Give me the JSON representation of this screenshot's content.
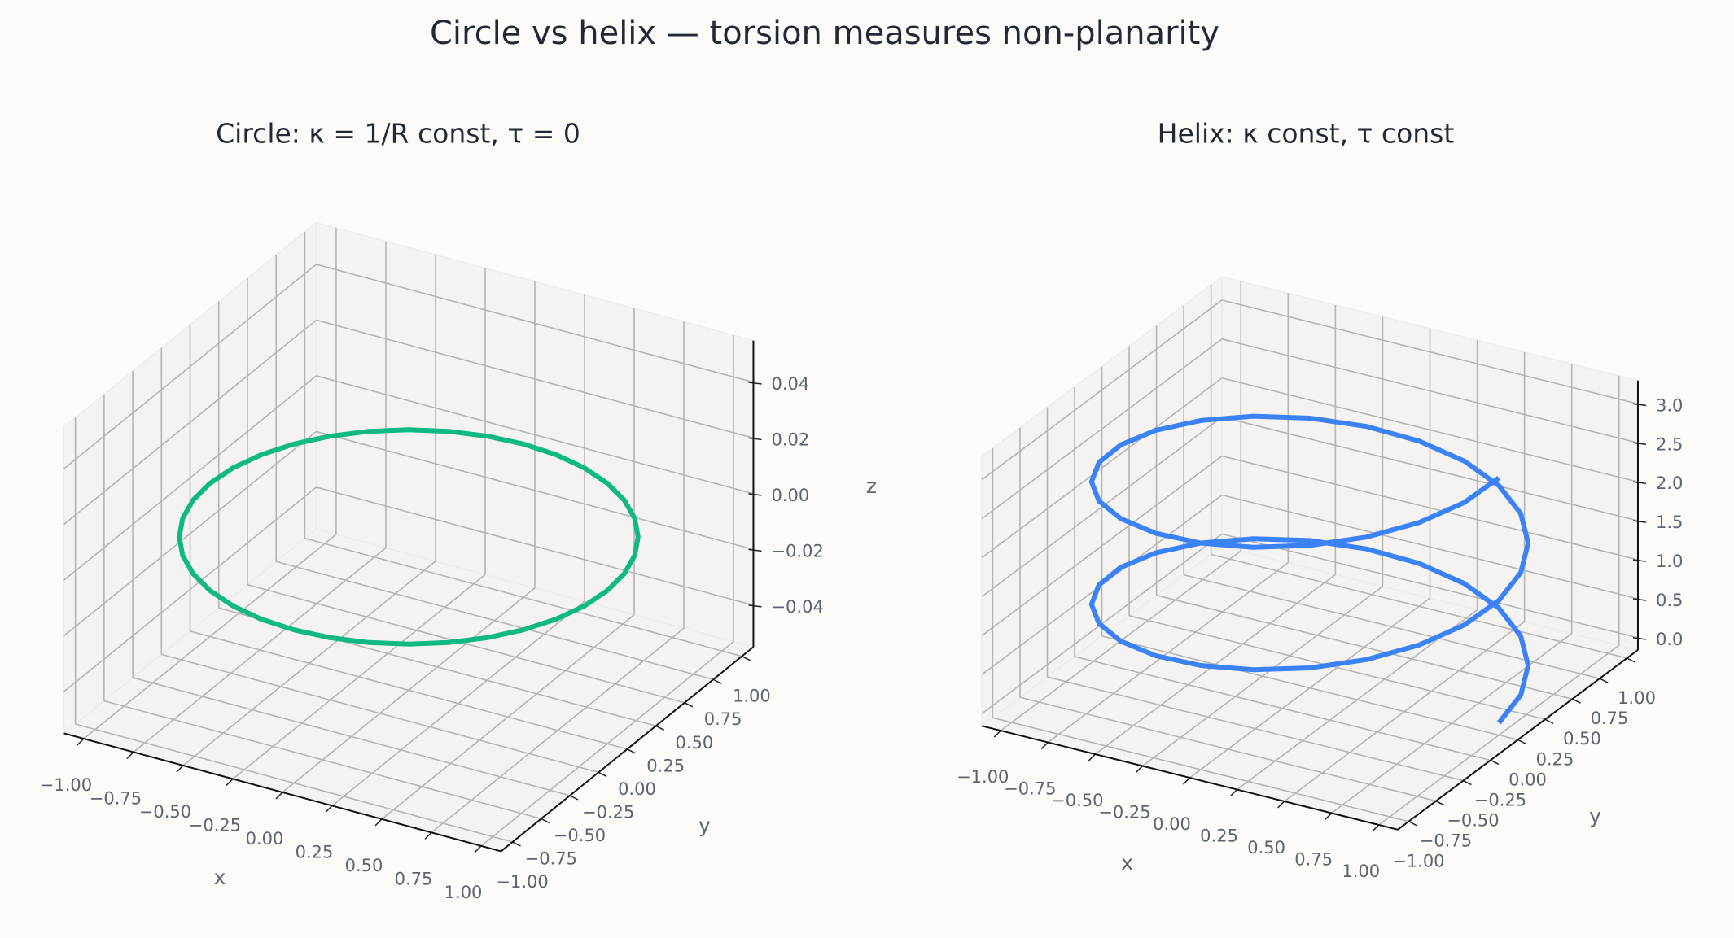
{
  "title": "Circle vs helix — torsion measures non-planarity",
  "chart_data": [
    {
      "type": "line3d",
      "title": "Circle: κ = 1/R const, τ = 0",
      "xlabel": "x",
      "ylabel": "y",
      "zlabel": "z",
      "xlim": [
        -1.1,
        1.1
      ],
      "ylim": [
        -1.1,
        1.1
      ],
      "zlim": [
        -0.055,
        0.055
      ],
      "xticks": [
        {
          "value": -1,
          "label": "−1.00"
        },
        {
          "value": -0.75,
          "label": "−0.75"
        },
        {
          "value": -0.5,
          "label": "−0.50"
        },
        {
          "value": -0.25,
          "label": "−0.25"
        },
        {
          "value": 0,
          "label": "0.00"
        },
        {
          "value": 0.25,
          "label": "0.25"
        },
        {
          "value": 0.5,
          "label": "0.50"
        },
        {
          "value": 0.75,
          "label": "0.75"
        },
        {
          "value": 1,
          "label": "1.00"
        }
      ],
      "yticks": [
        {
          "value": -1,
          "label": "−1.00"
        },
        {
          "value": -0.75,
          "label": "−0.75"
        },
        {
          "value": -0.5,
          "label": "−0.50"
        },
        {
          "value": -0.25,
          "label": "−0.25"
        },
        {
          "value": 0,
          "label": "0.00"
        },
        {
          "value": 0.25,
          "label": "0.25"
        },
        {
          "value": 0.5,
          "label": "0.50"
        },
        {
          "value": 0.75,
          "label": "0.75"
        },
        {
          "value": 1,
          "label": "1.00"
        }
      ],
      "zticks": [
        {
          "value": -0.04,
          "label": "−0.04"
        },
        {
          "value": -0.02,
          "label": "−0.02"
        },
        {
          "value": 0,
          "label": "0.00"
        },
        {
          "value": 0.02,
          "label": "0.02"
        },
        {
          "value": 0.04,
          "label": "0.04"
        }
      ],
      "grid": true,
      "series": [
        {
          "color": "#10b981",
          "x": [
            1,
            0.985,
            0.94,
            0.866,
            0.766,
            0.643,
            0.5,
            0.342,
            0.174,
            0,
            -0.174,
            -0.342,
            -0.5,
            -0.643,
            -0.766,
            -0.866,
            -0.94,
            -0.985,
            -1,
            -0.985,
            -0.94,
            -0.866,
            -0.766,
            -0.643,
            -0.5,
            -0.342,
            -0.174,
            0,
            0.174,
            0.342,
            0.5,
            0.643,
            0.766,
            0.866,
            0.94,
            0.985,
            1
          ],
          "y": [
            0,
            0.174,
            0.342,
            0.5,
            0.643,
            0.766,
            0.866,
            0.94,
            0.985,
            1,
            0.985,
            0.94,
            0.866,
            0.766,
            0.643,
            0.5,
            0.342,
            0.174,
            0,
            -0.174,
            -0.342,
            -0.5,
            -0.643,
            -0.766,
            -0.866,
            -0.94,
            -0.985,
            -1,
            -0.985,
            -0.94,
            -0.866,
            -0.766,
            -0.643,
            -0.5,
            -0.342,
            -0.174,
            0
          ],
          "z": [
            0,
            0,
            0,
            0,
            0,
            0,
            0,
            0,
            0,
            0,
            0,
            0,
            0,
            0,
            0,
            0,
            0,
            0,
            0,
            0,
            0,
            0,
            0,
            0,
            0,
            0,
            0,
            0,
            0,
            0,
            0,
            0,
            0,
            0,
            0,
            0,
            0
          ]
        }
      ]
    },
    {
      "type": "line3d",
      "title": "Helix: κ const, τ const",
      "xlabel": "x",
      "ylabel": "y",
      "xlim": [
        -1.1,
        1.1
      ],
      "ylim": [
        -1.1,
        1.1
      ],
      "zlim": [
        -0.157,
        3.299
      ],
      "xticks": [
        {
          "value": -1,
          "label": "−1.00"
        },
        {
          "value": -0.75,
          "label": "−0.75"
        },
        {
          "value": -0.5,
          "label": "−0.50"
        },
        {
          "value": -0.25,
          "label": "−0.25"
        },
        {
          "value": 0,
          "label": "0.00"
        },
        {
          "value": 0.25,
          "label": "0.25"
        },
        {
          "value": 0.5,
          "label": "0.50"
        },
        {
          "value": 0.75,
          "label": "0.75"
        },
        {
          "value": 1,
          "label": "1.00"
        }
      ],
      "yticks": [
        {
          "value": -1,
          "label": "−1.00"
        },
        {
          "value": -0.75,
          "label": "−0.75"
        },
        {
          "value": -0.5,
          "label": "−0.50"
        },
        {
          "value": -0.25,
          "label": "−0.25"
        },
        {
          "value": 0,
          "label": "0.00"
        },
        {
          "value": 0.25,
          "label": "0.25"
        },
        {
          "value": 0.5,
          "label": "0.50"
        },
        {
          "value": 0.75,
          "label": "0.75"
        },
        {
          "value": 1,
          "label": "1.00"
        }
      ],
      "zticks": [
        {
          "value": 0,
          "label": "0.0"
        },
        {
          "value": 0.5,
          "label": "0.5"
        },
        {
          "value": 1,
          "label": "1.0"
        },
        {
          "value": 1.5,
          "label": "1.5"
        },
        {
          "value": 2,
          "label": "2.0"
        },
        {
          "value": 2.5,
          "label": "2.5"
        },
        {
          "value": 3,
          "label": "3.0"
        }
      ],
      "grid": true,
      "series": [
        {
          "color": "#3b82f6",
          "x": [
            1,
            0.966,
            0.866,
            0.707,
            0.5,
            0.259,
            0,
            -0.259,
            -0.5,
            -0.707,
            -0.866,
            -0.966,
            -1,
            -0.966,
            -0.866,
            -0.707,
            -0.5,
            -0.259,
            0,
            0.259,
            0.5,
            0.707,
            0.866,
            0.966,
            1,
            0.966,
            0.866,
            0.707,
            0.5,
            0.259,
            0,
            -0.259,
            -0.5,
            -0.707,
            -0.866,
            -0.966,
            -1,
            -0.966,
            -0.866,
            -0.707,
            -0.5,
            -0.259,
            0,
            0.259,
            0.5,
            0.707,
            0.866,
            0.966,
            1
          ],
          "y": [
            0,
            0.259,
            0.5,
            0.707,
            0.866,
            0.966,
            1,
            0.966,
            0.866,
            0.707,
            0.5,
            0.259,
            0,
            -0.259,
            -0.5,
            -0.707,
            -0.866,
            -0.966,
            -1,
            -0.966,
            -0.866,
            -0.707,
            -0.5,
            -0.259,
            0,
            0.259,
            0.5,
            0.707,
            0.866,
            0.966,
            1,
            0.966,
            0.866,
            0.707,
            0.5,
            0.259,
            0,
            -0.259,
            -0.5,
            -0.707,
            -0.866,
            -0.966,
            -1,
            -0.966,
            -0.866,
            -0.707,
            -0.5,
            -0.259,
            0
          ],
          "z": [
            0,
            0.065,
            0.131,
            0.196,
            0.262,
            0.327,
            0.393,
            0.458,
            0.524,
            0.589,
            0.654,
            0.72,
            0.785,
            0.851,
            0.916,
            0.982,
            1.047,
            1.113,
            1.178,
            1.244,
            1.309,
            1.374,
            1.44,
            1.505,
            1.571,
            1.636,
            1.702,
            1.767,
            1.833,
            1.898,
            1.963,
            2.029,
            2.094,
            2.16,
            2.225,
            2.291,
            2.356,
            2.422,
            2.487,
            2.553,
            2.618,
            2.683,
            2.749,
            2.814,
            2.88,
            2.945,
            3.011,
            3.076,
            3.142
          ]
        }
      ]
    }
  ]
}
